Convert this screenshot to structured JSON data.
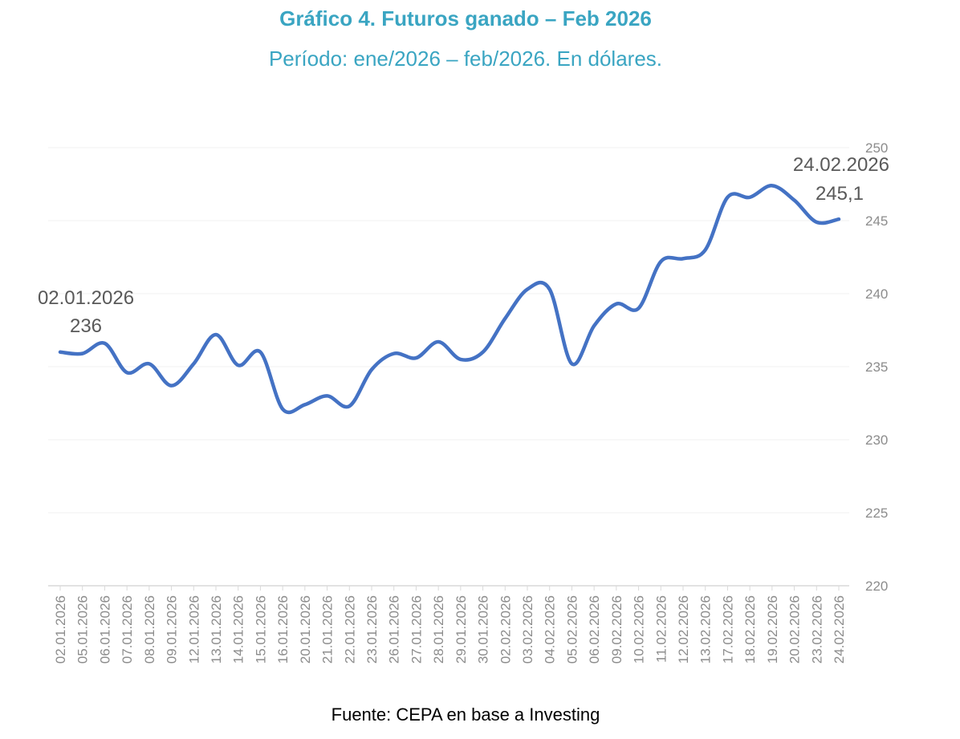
{
  "header": {
    "title": "Gráfico 4. Futuros ganado – Feb 2026",
    "subtitle": "Período: ene/2026 – feb/2026. En dólares."
  },
  "footer": {
    "source": "Fuente: CEPA en base a Investing"
  },
  "chart_data": {
    "type": "line",
    "title": "Gráfico 4. Futuros ganado – Feb 2026",
    "subtitle": "Período: ene/2026 – feb/2026. En dólares.",
    "xlabel": "",
    "ylabel": "",
    "ylim": [
      220,
      250
    ],
    "yticks": [
      220,
      225,
      230,
      235,
      240,
      245,
      250
    ],
    "y_axis_position": "right",
    "grid": true,
    "legend": "none",
    "line_color": "#4472c4",
    "categories": [
      "02.01.2026",
      "05.01.2026",
      "06.01.2026",
      "07.01.2026",
      "08.01.2026",
      "09.01.2026",
      "12.01.2026",
      "13.01.2026",
      "14.01.2026",
      "15.01.2026",
      "16.01.2026",
      "20.01.2026",
      "21.01.2026",
      "22.01.2026",
      "23.01.2026",
      "26.01.2026",
      "27.01.2026",
      "28.01.2026",
      "29.01.2026",
      "30.01.2026",
      "02.02.2026",
      "03.02.2026",
      "04.02.2026",
      "05.02.2026",
      "06.02.2026",
      "09.02.2026",
      "10.02.2026",
      "11.02.2026",
      "12.02.2026",
      "13.02.2026",
      "17.02.2026",
      "18.02.2026",
      "19.02.2026",
      "20.02.2026",
      "23.02.2026",
      "24.02.2026"
    ],
    "values": [
      236.0,
      235.9,
      236.6,
      234.6,
      235.2,
      233.7,
      235.2,
      237.2,
      235.1,
      236.0,
      232.1,
      232.4,
      233.0,
      232.3,
      234.8,
      235.9,
      235.6,
      236.7,
      235.5,
      236.0,
      238.3,
      240.3,
      240.3,
      235.2,
      237.8,
      239.3,
      239.0,
      242.2,
      242.4,
      243.0,
      246.6,
      246.6,
      247.4,
      246.4,
      244.9,
      245.1
    ],
    "annotations": [
      {
        "date": "02.01.2026",
        "value": "236"
      },
      {
        "date": "24.02.2026",
        "value": "245,1"
      }
    ]
  }
}
